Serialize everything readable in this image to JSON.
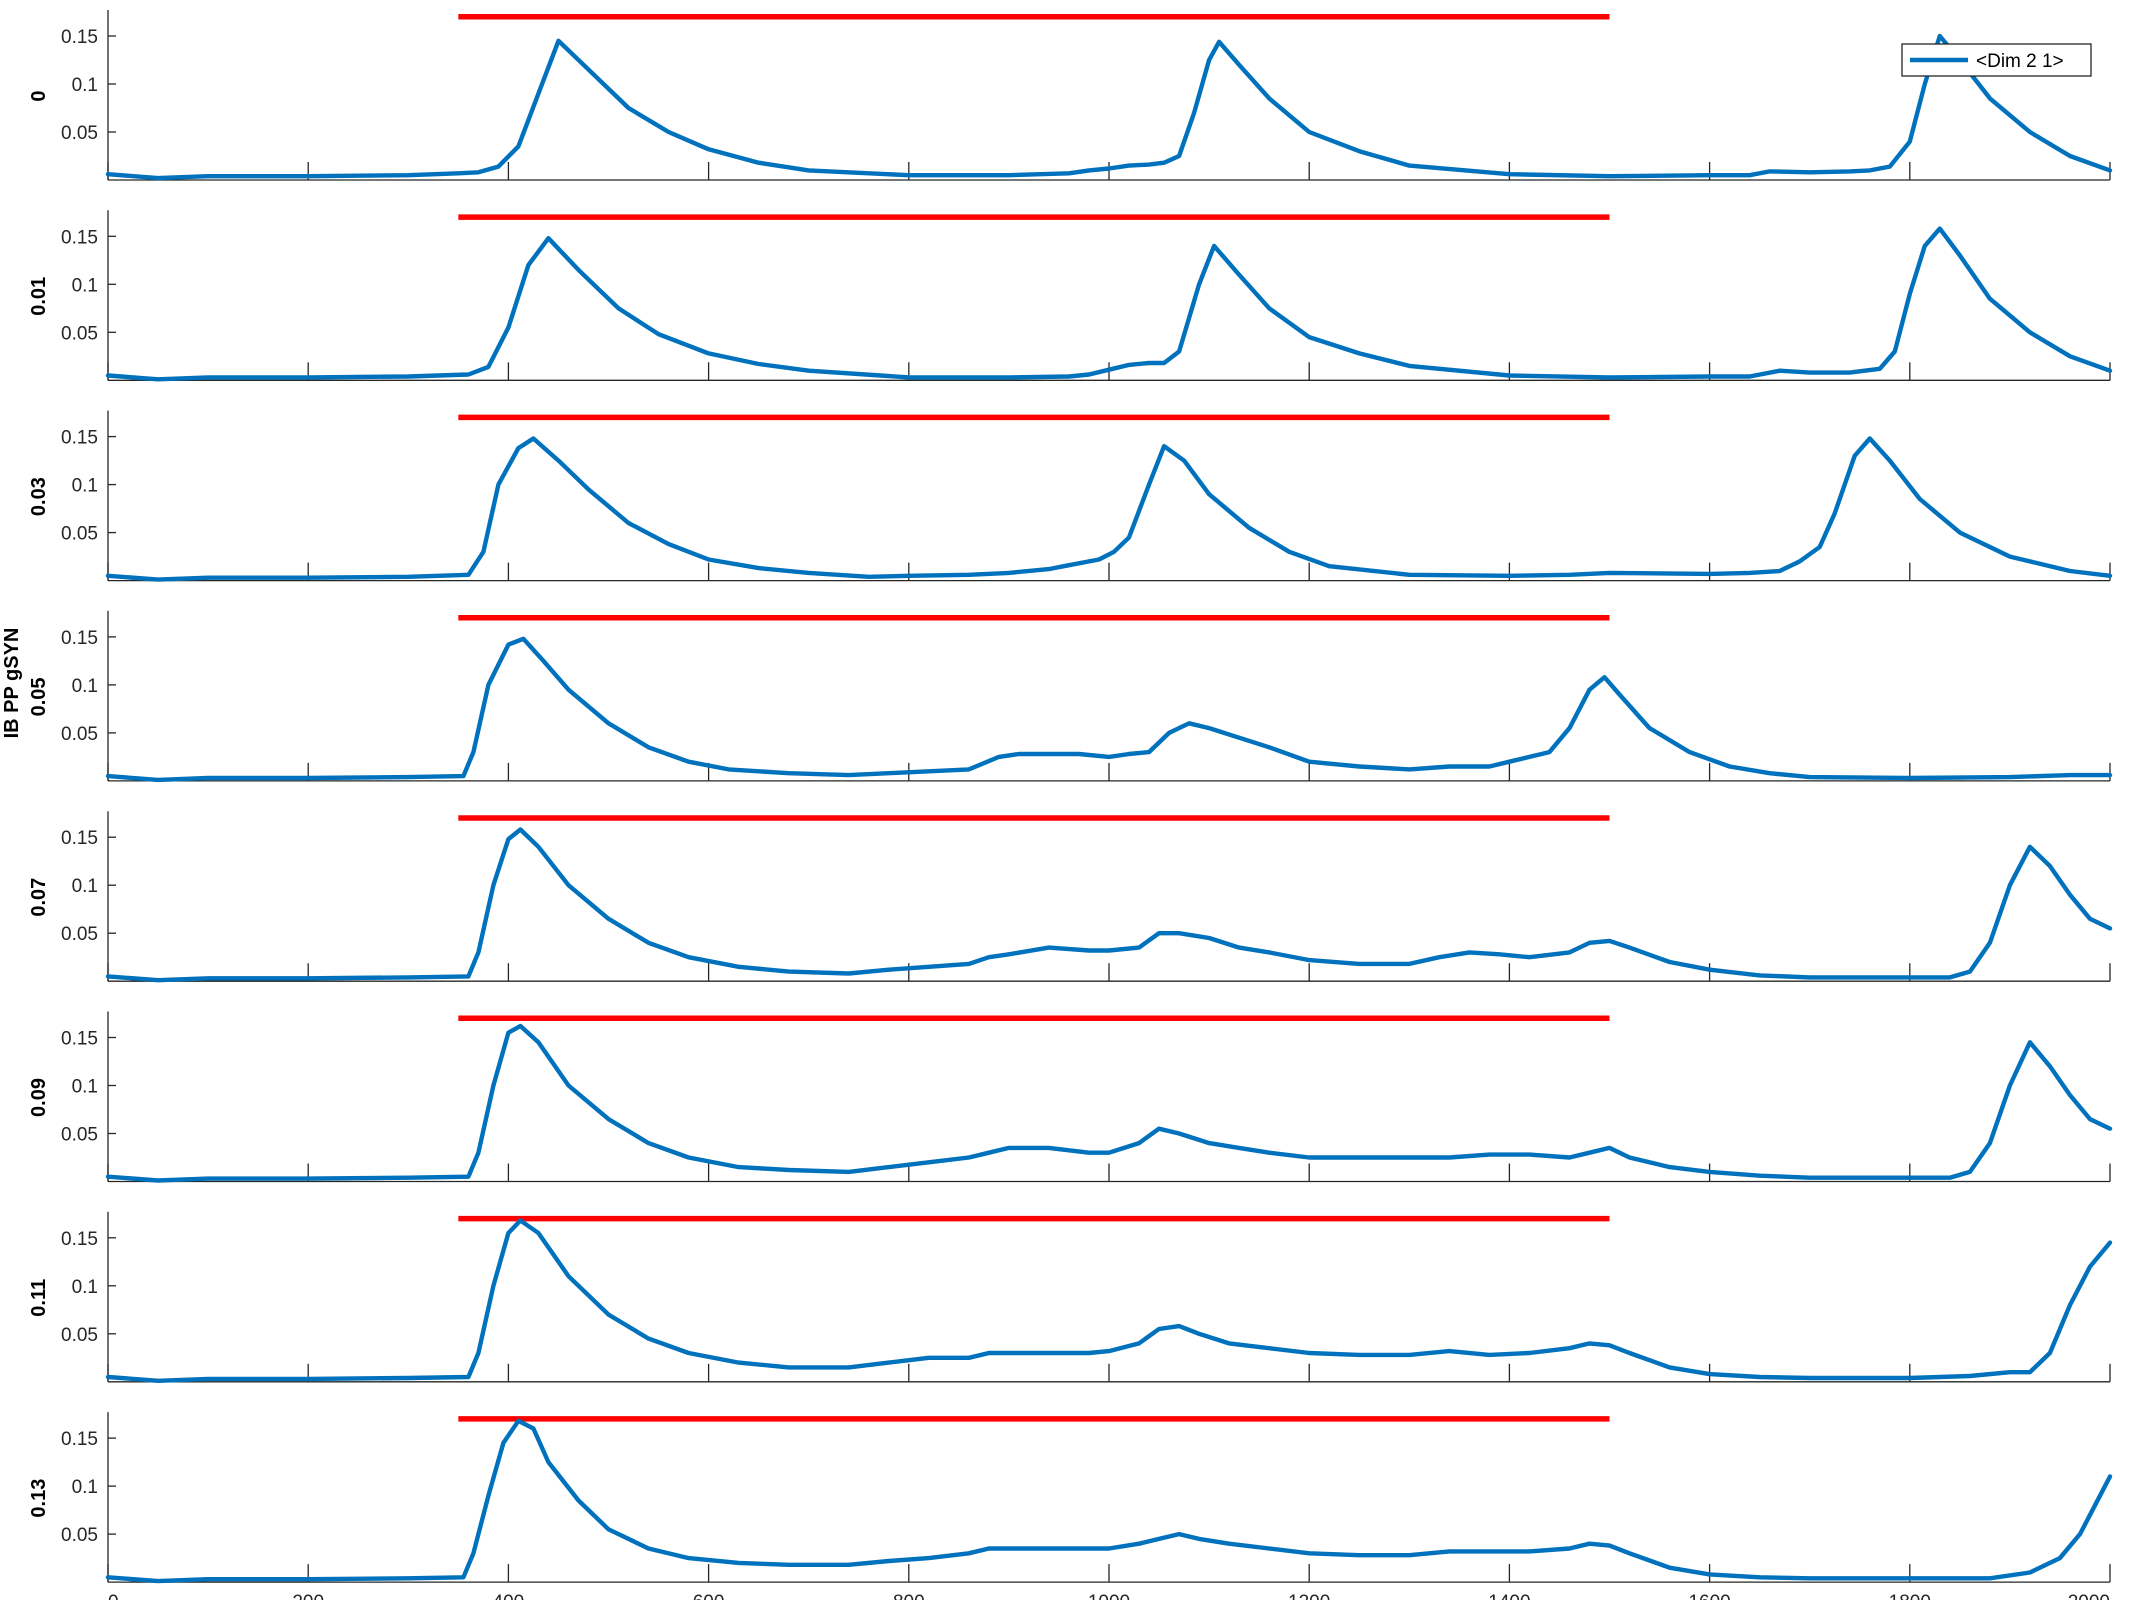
{
  "figure": {
    "ylabel": "IB PP gSYN",
    "legend_entry": "<Dim 2 1>"
  },
  "colors": {
    "trace": "#0072BD",
    "stimulus_bar": "#FF0000",
    "axis": "#262626"
  },
  "chart_data": {
    "type": "line",
    "layout": "8 vertically stacked subplots sharing x axis",
    "shared_xlabel": "",
    "ylabel": "IB PP gSYN",
    "xlim": [
      0,
      2000
    ],
    "ylim": [
      0,
      0.175
    ],
    "xticks": [
      0,
      200,
      400,
      600,
      800,
      1000,
      1200,
      1400,
      1600,
      1800,
      2000
    ],
    "xtick_labels": [
      "0",
      "200",
      "400",
      "600",
      "800",
      "1000",
      "1200",
      "1400",
      "1600",
      "1800",
      "2000"
    ],
    "yticks": [
      0.05,
      0.1,
      0.15
    ],
    "ytick_labels": [
      "0.05",
      "0.1",
      "0.15"
    ],
    "legend": {
      "entries": [
        "<Dim 2 1>"
      ],
      "placement": "top-right of first subplot"
    },
    "stimulus_bar": {
      "x_start": 350,
      "x_end": 1500,
      "y": 0.17,
      "color": "#FF0000"
    },
    "panels": [
      {
        "label": "0",
        "series": [
          {
            "name": "<Dim 2 1>",
            "x": [
              0,
              50,
              100,
              200,
              300,
              350,
              370,
              390,
              410,
              430,
              450,
              480,
              520,
              560,
              600,
              650,
              700,
              800,
              900,
              960,
              980,
              1000,
              1020,
              1040,
              1055,
              1070,
              1085,
              1100,
              1110,
              1130,
              1160,
              1200,
              1250,
              1300,
              1400,
              1500,
              1600,
              1640,
              1660,
              1700,
              1740,
              1760,
              1780,
              1800,
              1815,
              1830,
              1850,
              1880,
              1920,
              1960,
              2000
            ],
            "y": [
              0.006,
              0.002,
              0.004,
              0.004,
              0.005,
              0.007,
              0.008,
              0.014,
              0.035,
              0.09,
              0.145,
              0.115,
              0.075,
              0.05,
              0.032,
              0.018,
              0.01,
              0.005,
              0.005,
              0.007,
              0.01,
              0.012,
              0.015,
              0.016,
              0.018,
              0.025,
              0.07,
              0.125,
              0.144,
              0.12,
              0.085,
              0.05,
              0.03,
              0.015,
              0.006,
              0.004,
              0.005,
              0.005,
              0.009,
              0.008,
              0.009,
              0.01,
              0.014,
              0.04,
              0.1,
              0.15,
              0.125,
              0.085,
              0.05,
              0.025,
              0.01
            ]
          }
        ]
      },
      {
        "label": "0.01",
        "series": [
          {
            "name": "<Dim 2 1>",
            "x": [
              0,
              50,
              100,
              200,
              300,
              360,
              380,
              400,
              420,
              440,
              470,
              510,
              550,
              600,
              650,
              700,
              800,
              900,
              960,
              980,
              1000,
              1020,
              1040,
              1055,
              1070,
              1090,
              1105,
              1130,
              1160,
              1200,
              1250,
              1300,
              1400,
              1500,
              1600,
              1640,
              1670,
              1700,
              1740,
              1770,
              1785,
              1800,
              1815,
              1830,
              1850,
              1880,
              1920,
              1960,
              2000
            ],
            "y": [
              0.005,
              0.001,
              0.003,
              0.003,
              0.004,
              0.006,
              0.014,
              0.055,
              0.12,
              0.148,
              0.115,
              0.075,
              0.048,
              0.028,
              0.017,
              0.01,
              0.003,
              0.003,
              0.004,
              0.006,
              0.011,
              0.016,
              0.018,
              0.018,
              0.03,
              0.1,
              0.14,
              0.11,
              0.075,
              0.045,
              0.028,
              0.015,
              0.005,
              0.003,
              0.004,
              0.004,
              0.01,
              0.008,
              0.008,
              0.012,
              0.03,
              0.09,
              0.14,
              0.158,
              0.13,
              0.085,
              0.05,
              0.025,
              0.01
            ]
          }
        ]
      },
      {
        "label": "0.03",
        "series": [
          {
            "name": "<Dim 2 1>",
            "x": [
              0,
              50,
              100,
              200,
              300,
              360,
              375,
              390,
              410,
              425,
              450,
              480,
              520,
              560,
              600,
              650,
              700,
              760,
              800,
              860,
              900,
              940,
              960,
              990,
              1005,
              1020,
              1040,
              1055,
              1075,
              1100,
              1140,
              1180,
              1220,
              1300,
              1400,
              1460,
              1500,
              1600,
              1640,
              1670,
              1690,
              1710,
              1725,
              1745,
              1760,
              1780,
              1810,
              1850,
              1900,
              1960,
              2000
            ],
            "y": [
              0.005,
              0.001,
              0.003,
              0.003,
              0.004,
              0.006,
              0.03,
              0.1,
              0.138,
              0.148,
              0.125,
              0.095,
              0.06,
              0.038,
              0.022,
              0.013,
              0.008,
              0.004,
              0.005,
              0.006,
              0.008,
              0.012,
              0.016,
              0.022,
              0.03,
              0.045,
              0.1,
              0.14,
              0.125,
              0.09,
              0.055,
              0.03,
              0.015,
              0.006,
              0.005,
              0.006,
              0.008,
              0.007,
              0.008,
              0.01,
              0.02,
              0.035,
              0.07,
              0.13,
              0.148,
              0.125,
              0.085,
              0.05,
              0.025,
              0.01,
              0.005
            ]
          }
        ]
      },
      {
        "label": "0.05",
        "series": [
          {
            "name": "<Dim 2 1>",
            "x": [
              0,
              50,
              100,
              200,
              300,
              355,
              365,
              380,
              400,
              415,
              435,
              460,
              500,
              540,
              580,
              620,
              680,
              740,
              780,
              820,
              860,
              890,
              910,
              940,
              970,
              1000,
              1020,
              1040,
              1060,
              1080,
              1100,
              1130,
              1160,
              1200,
              1250,
              1300,
              1340,
              1380,
              1400,
              1420,
              1440,
              1460,
              1480,
              1495,
              1510,
              1540,
              1580,
              1620,
              1660,
              1700,
              1800,
              1900,
              1960,
              2000
            ],
            "y": [
              0.005,
              0.001,
              0.003,
              0.003,
              0.004,
              0.005,
              0.03,
              0.1,
              0.142,
              0.148,
              0.125,
              0.095,
              0.06,
              0.035,
              0.02,
              0.012,
              0.008,
              0.006,
              0.008,
              0.01,
              0.012,
              0.025,
              0.028,
              0.028,
              0.028,
              0.025,
              0.028,
              0.03,
              0.05,
              0.06,
              0.055,
              0.045,
              0.035,
              0.02,
              0.015,
              0.012,
              0.015,
              0.015,
              0.02,
              0.025,
              0.03,
              0.055,
              0.095,
              0.108,
              0.09,
              0.055,
              0.03,
              0.015,
              0.008,
              0.004,
              0.003,
              0.004,
              0.006,
              0.006
            ]
          }
        ]
      },
      {
        "label": "0.07",
        "series": [
          {
            "name": "<Dim 2 1>",
            "x": [
              0,
              50,
              100,
              200,
              300,
              360,
              370,
              385,
              400,
              412,
              430,
              460,
              500,
              540,
              580,
              630,
              680,
              740,
              780,
              820,
              860,
              880,
              900,
              940,
              980,
              1000,
              1030,
              1050,
              1070,
              1100,
              1130,
              1160,
              1200,
              1250,
              1300,
              1330,
              1360,
              1390,
              1420,
              1460,
              1480,
              1500,
              1520,
              1560,
              1600,
              1650,
              1700,
              1800,
              1840,
              1860,
              1880,
              1900,
              1920,
              1940,
              1960,
              1980,
              2000
            ],
            "y": [
              0.005,
              0.001,
              0.003,
              0.003,
              0.004,
              0.005,
              0.03,
              0.1,
              0.148,
              0.158,
              0.14,
              0.1,
              0.065,
              0.04,
              0.025,
              0.015,
              0.01,
              0.008,
              0.012,
              0.015,
              0.018,
              0.025,
              0.028,
              0.035,
              0.032,
              0.032,
              0.035,
              0.05,
              0.05,
              0.045,
              0.035,
              0.03,
              0.022,
              0.018,
              0.018,
              0.025,
              0.03,
              0.028,
              0.025,
              0.03,
              0.04,
              0.042,
              0.035,
              0.02,
              0.012,
              0.006,
              0.004,
              0.004,
              0.004,
              0.01,
              0.04,
              0.1,
              0.14,
              0.12,
              0.09,
              0.065,
              0.055
            ]
          }
        ]
      },
      {
        "label": "0.09",
        "series": [
          {
            "name": "<Dim 2 1>",
            "x": [
              0,
              50,
              100,
              200,
              300,
              360,
              370,
              385,
              400,
              412,
              430,
              460,
              500,
              540,
              580,
              630,
              680,
              740,
              780,
              820,
              860,
              880,
              900,
              940,
              980,
              1000,
              1030,
              1050,
              1070,
              1100,
              1130,
              1160,
              1200,
              1250,
              1300,
              1340,
              1380,
              1420,
              1460,
              1480,
              1500,
              1520,
              1560,
              1600,
              1650,
              1700,
              1800,
              1840,
              1860,
              1880,
              1900,
              1920,
              1940,
              1960,
              1980,
              2000
            ],
            "y": [
              0.005,
              0.001,
              0.003,
              0.003,
              0.004,
              0.005,
              0.03,
              0.1,
              0.155,
              0.162,
              0.145,
              0.1,
              0.065,
              0.04,
              0.025,
              0.015,
              0.012,
              0.01,
              0.015,
              0.02,
              0.025,
              0.03,
              0.035,
              0.035,
              0.03,
              0.03,
              0.04,
              0.055,
              0.05,
              0.04,
              0.035,
              0.03,
              0.025,
              0.025,
              0.025,
              0.025,
              0.028,
              0.028,
              0.025,
              0.03,
              0.035,
              0.025,
              0.015,
              0.01,
              0.006,
              0.004,
              0.004,
              0.004,
              0.01,
              0.04,
              0.1,
              0.145,
              0.12,
              0.09,
              0.065,
              0.055
            ]
          }
        ]
      },
      {
        "label": "0.11",
        "series": [
          {
            "name": "<Dim 2 1>",
            "x": [
              0,
              50,
              100,
              200,
              300,
              360,
              370,
              385,
              400,
              412,
              430,
              460,
              500,
              540,
              580,
              630,
              680,
              740,
              780,
              820,
              860,
              880,
              900,
              940,
              980,
              1000,
              1030,
              1050,
              1070,
              1090,
              1120,
              1160,
              1200,
              1250,
              1300,
              1340,
              1380,
              1420,
              1460,
              1480,
              1500,
              1520,
              1560,
              1600,
              1650,
              1700,
              1800,
              1860,
              1900,
              1920,
              1940,
              1960,
              1980,
              2000
            ],
            "y": [
              0.005,
              0.001,
              0.003,
              0.003,
              0.004,
              0.005,
              0.03,
              0.1,
              0.155,
              0.168,
              0.155,
              0.11,
              0.07,
              0.045,
              0.03,
              0.02,
              0.015,
              0.015,
              0.02,
              0.025,
              0.025,
              0.03,
              0.03,
              0.03,
              0.03,
              0.032,
              0.04,
              0.055,
              0.058,
              0.05,
              0.04,
              0.035,
              0.03,
              0.028,
              0.028,
              0.032,
              0.028,
              0.03,
              0.035,
              0.04,
              0.038,
              0.03,
              0.015,
              0.008,
              0.005,
              0.004,
              0.004,
              0.006,
              0.01,
              0.01,
              0.03,
              0.08,
              0.12,
              0.145
            ]
          }
        ]
      },
      {
        "label": "0.13",
        "series": [
          {
            "name": "<Dim 2 1>",
            "x": [
              0,
              50,
              100,
              200,
              300,
              355,
              365,
              380,
              395,
              410,
              425,
              440,
              470,
              500,
              540,
              580,
              630,
              680,
              740,
              780,
              820,
              860,
              880,
              900,
              940,
              980,
              1000,
              1030,
              1050,
              1070,
              1090,
              1120,
              1160,
              1200,
              1250,
              1300,
              1340,
              1380,
              1420,
              1460,
              1480,
              1500,
              1520,
              1560,
              1600,
              1650,
              1700,
              1800,
              1880,
              1920,
              1950,
              1970,
              1990,
              2000
            ],
            "y": [
              0.005,
              0.001,
              0.003,
              0.003,
              0.004,
              0.005,
              0.03,
              0.09,
              0.145,
              0.168,
              0.16,
              0.125,
              0.085,
              0.055,
              0.035,
              0.025,
              0.02,
              0.018,
              0.018,
              0.022,
              0.025,
              0.03,
              0.035,
              0.035,
              0.035,
              0.035,
              0.035,
              0.04,
              0.045,
              0.05,
              0.045,
              0.04,
              0.035,
              0.03,
              0.028,
              0.028,
              0.032,
              0.032,
              0.032,
              0.035,
              0.04,
              0.038,
              0.03,
              0.015,
              0.008,
              0.005,
              0.004,
              0.004,
              0.004,
              0.01,
              0.025,
              0.05,
              0.09,
              0.11
            ]
          }
        ]
      }
    ]
  }
}
